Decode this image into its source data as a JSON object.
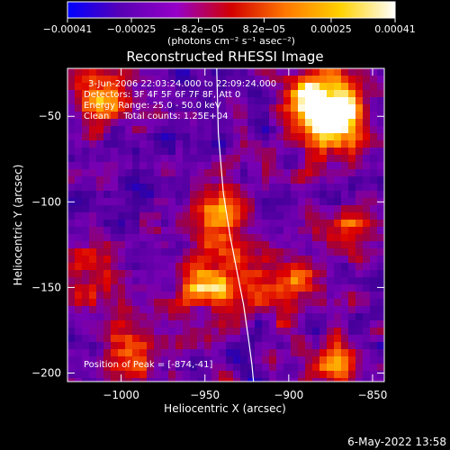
{
  "chart_data": {
    "type": "heatmap",
    "title": "Reconstructed RHESSI Image",
    "xlabel": "Heliocentric X (arcsec)",
    "ylabel": "Heliocentric Y (arcsec)",
    "xlim": [
      -1032,
      -843
    ],
    "ylim": [
      -205,
      -22
    ],
    "x_ticks": [
      -1000,
      -950,
      -900,
      -850
    ],
    "y_ticks": [
      -200,
      -150,
      -100,
      -50
    ],
    "x_tick_labels": [
      "−1000",
      "−950",
      "−900",
      "−850"
    ],
    "y_tick_labels": [
      "−200",
      "−150",
      "−100",
      "−50"
    ],
    "colorbar": {
      "min": -0.00041,
      "max": 0.00041,
      "tick_values": [
        -0.00041,
        -0.00025,
        -8.2e-05,
        8.2e-05,
        0.00025,
        0.00041
      ],
      "tick_labels": [
        "−0.00041",
        "−0.00025",
        "−8.2e−05",
        "8.2e−05",
        "0.00025",
        "0.00041"
      ],
      "units_label": "(photons cm⁻² s⁻¹ asec⁻²)",
      "colors": [
        "#0000ff",
        "#5a00b4",
        "#9600c8",
        "#d20000",
        "#ff7800",
        "#ffd200",
        "#ffffff"
      ]
    },
    "annotations": [
      "3-Jun-2006 22:03:24.000 to 22:09:24.000",
      "Detectors: 3F 4F 5F 6F 7F 8F, Att 0",
      "Energy Range: 25.0 - 50.0 keV",
      "Clean     Total counts: 1.25E+04",
      "Position of Peak = [-874,-41]"
    ],
    "limb_curve": {
      "x": [
        -943,
        -942,
        -939,
        -935,
        -931,
        -927,
        -924,
        -922,
        -921
      ],
      "y": [
        -22,
        -60,
        -95,
        -120,
        -140,
        -160,
        -180,
        -195,
        -205
      ]
    },
    "peak": {
      "x": -874,
      "y": -41
    },
    "sources": [
      {
        "x": -882,
        "y": -40,
        "strength": 1.0
      },
      {
        "x": -872,
        "y": -55,
        "strength": 0.8
      },
      {
        "x": -945,
        "y": -150,
        "strength": 0.9
      },
      {
        "x": -940,
        "y": -105,
        "strength": 0.6
      },
      {
        "x": -1012,
        "y": -40,
        "strength": 0.7
      },
      {
        "x": -1015,
        "y": -140,
        "strength": 0.6
      },
      {
        "x": -905,
        "y": -145,
        "strength": 0.55
      },
      {
        "x": -875,
        "y": -195,
        "strength": 0.6
      },
      {
        "x": -995,
        "y": -185,
        "strength": 0.55
      },
      {
        "x": -865,
        "y": -115,
        "strength": 0.5
      }
    ]
  },
  "footer": {
    "timestamp": "6-May-2022 13:58"
  }
}
